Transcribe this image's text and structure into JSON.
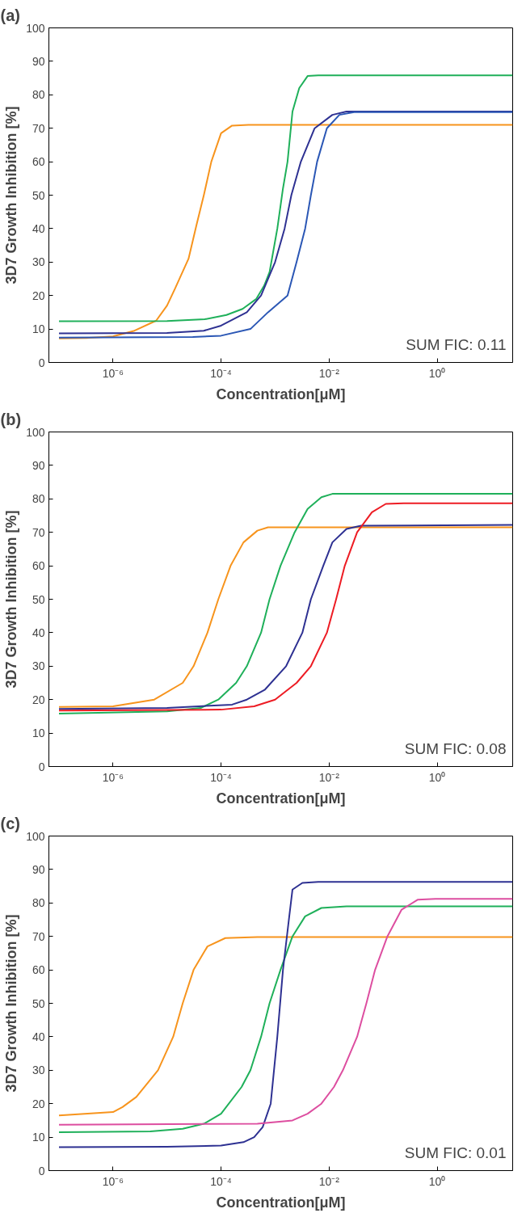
{
  "chart_data": [
    {
      "type": "line",
      "title": "(a)",
      "xlabel": "Concentration[μM]",
      "ylabel": "3D7 Growth Inhibition [%]",
      "log": "x",
      "xlim": [
        6.5e-08,
        25
      ],
      "ylim": [
        0,
        100
      ],
      "xticks": [
        {
          "value": 1e-06,
          "label": "10⁻⁶"
        },
        {
          "value": 0.0001,
          "label": "10⁻⁴"
        },
        {
          "value": 0.01,
          "label": "10⁻²"
        },
        {
          "value": 1,
          "label": "10⁰"
        }
      ],
      "yticks": [
        0,
        10,
        20,
        30,
        40,
        50,
        60,
        70,
        80,
        90,
        100
      ],
      "grid": false,
      "annotations": [
        "SUM FIC: 0.11"
      ],
      "series": [
        {
          "color": "#f7941d",
          "x": [
            1e-07,
            3.2e-07,
            1e-06,
            2.5e-06,
            6.3e-06,
            1e-05,
            1.4e-05,
            2.5e-05,
            3.5e-05,
            4.8e-05,
            6.6e-05,
            0.0001,
            0.00016,
            0.00032,
            25
          ],
          "values": [
            7.2,
            7.3,
            7.8,
            9.5,
            12.5,
            17,
            22,
            31,
            41,
            50,
            60,
            68.5,
            70.8,
            71,
            71
          ]
        },
        {
          "color": "#1fb05a",
          "x": [
            1e-07,
            1e-05,
            5e-05,
            0.000126,
            0.00025,
            0.00045,
            0.00063,
            0.00079,
            0.0011,
            0.0014,
            0.0017,
            0.0021,
            0.0028,
            0.004,
            0.0063,
            25
          ],
          "values": [
            12.3,
            12.4,
            12.9,
            14.2,
            16,
            19,
            23,
            27,
            40,
            52,
            60,
            75,
            82,
            85.6,
            85.8,
            85.8
          ]
        },
        {
          "color": "#2e3192",
          "x": [
            1e-07,
            1e-05,
            4.8e-05,
            0.0001,
            0.0003,
            0.00055,
            0.001,
            0.0015,
            0.002,
            0.003,
            0.0054,
            0.0115,
            0.021,
            25
          ],
          "values": [
            8.7,
            8.8,
            9.5,
            11,
            15,
            20,
            30,
            40,
            50,
            60,
            70,
            74,
            75,
            75
          ]
        },
        {
          "color": "#2b57b5",
          "x": [
            1e-07,
            3e-05,
            0.0001,
            0.00035,
            0.00074,
            0.0017,
            0.0025,
            0.0036,
            0.0046,
            0.006,
            0.0091,
            0.0155,
            0.029,
            25
          ],
          "values": [
            7.4,
            7.6,
            8,
            10,
            15,
            20,
            30,
            40,
            50,
            60,
            70,
            74,
            74.8,
            74.8
          ]
        }
      ]
    },
    {
      "type": "line",
      "title": "(b)",
      "xlabel": "Concentration[μM]",
      "ylabel": "3D7 Growth Inhibition [%]",
      "log": "x",
      "xlim": [
        6.5e-08,
        25
      ],
      "ylim": [
        0,
        100
      ],
      "xticks": [
        {
          "value": 1e-06,
          "label": "10⁻⁶"
        },
        {
          "value": 0.0001,
          "label": "10⁻⁴"
        },
        {
          "value": 0.01,
          "label": "10⁻²"
        },
        {
          "value": 1,
          "label": "10⁰"
        }
      ],
      "yticks": [
        0,
        10,
        20,
        30,
        40,
        50,
        60,
        70,
        80,
        90,
        100
      ],
      "grid": false,
      "annotations": [
        "SUM FIC: 0.08"
      ],
      "series": [
        {
          "color": "#f7941d",
          "x": [
            1e-07,
            1e-06,
            5.8e-06,
            1.95e-05,
            3.1e-05,
            5.6e-05,
            8.9e-05,
            0.00015,
            0.00026,
            0.00047,
            0.00074,
            25
          ],
          "values": [
            17.8,
            18,
            20,
            25,
            30,
            40,
            50,
            60,
            67,
            70.5,
            71.5,
            71.5
          ]
        },
        {
          "color": "#1fb05a",
          "x": [
            1e-07,
            1e-05,
            4.2e-05,
            8.9e-05,
            0.00019,
            0.0003,
            0.00055,
            0.00079,
            0.00126,
            0.0023,
            0.004,
            0.0072,
            0.0115,
            25
          ],
          "values": [
            15.8,
            16.5,
            17.5,
            20,
            25,
            30,
            40,
            50,
            60,
            70,
            77,
            80.5,
            81.5,
            81.5
          ]
        },
        {
          "color": "#2e3192",
          "x": [
            1e-07,
            1e-05,
            0.00016,
            0.0003,
            0.00065,
            0.0016,
            0.0032,
            0.0046,
            0.0078,
            0.0115,
            0.021,
            0.039,
            25
          ],
          "values": [
            17.2,
            17.5,
            18.5,
            20,
            23,
            30,
            40,
            50,
            60,
            67,
            71,
            72,
            72.2
          ]
        },
        {
          "color": "#ed1c24",
          "x": [
            1e-07,
            0.0001,
            0.00041,
            0.001,
            0.0025,
            0.0046,
            0.0091,
            0.0135,
            0.0195,
            0.033,
            0.062,
            0.112,
            0.24,
            25
          ],
          "values": [
            16.7,
            17,
            18,
            20,
            25,
            30,
            40,
            50,
            60,
            70,
            76,
            78.5,
            78.7,
            78.7
          ]
        }
      ]
    },
    {
      "type": "line",
      "title": "(c)",
      "xlabel": "Concentration[μM]",
      "ylabel": "3D7 Growth Inhibition [%]",
      "log": "x",
      "xlim": [
        6.5e-08,
        25
      ],
      "ylim": [
        0,
        100
      ],
      "xticks": [
        {
          "value": 1e-06,
          "label": "10⁻⁶"
        },
        {
          "value": 0.0001,
          "label": "10⁻⁴"
        },
        {
          "value": 0.01,
          "label": "10⁻²"
        },
        {
          "value": 1,
          "label": "10⁰"
        }
      ],
      "yticks": [
        0,
        10,
        20,
        30,
        40,
        50,
        60,
        70,
        80,
        90,
        100
      ],
      "grid": false,
      "annotations": [
        "SUM FIC: 0.01"
      ],
      "series": [
        {
          "color": "#f7941d",
          "x": [
            1e-07,
            1e-06,
            1.5e-06,
            2.7e-06,
            6.8e-06,
            1.3e-05,
            1.95e-05,
            3.1e-05,
            5.6e-05,
            0.00012,
            0.00047,
            25
          ],
          "values": [
            16.5,
            17.5,
            19,
            22,
            30,
            40,
            50,
            60,
            67,
            69.5,
            69.8,
            69.8
          ]
        },
        {
          "color": "#1fb05a",
          "x": [
            1e-07,
            4.9e-06,
            1.95e-05,
            4.8e-05,
            0.0001,
            0.00024,
            0.00035,
            0.00055,
            0.00079,
            0.00126,
            0.0021,
            0.0036,
            0.0072,
            0.021,
            25
          ],
          "values": [
            11.5,
            11.7,
            12.5,
            14,
            17,
            25,
            30,
            40,
            50,
            60,
            70,
            76,
            78.5,
            79,
            79
          ]
        },
        {
          "color": "#2e3192",
          "x": [
            1e-07,
            1e-05,
            0.0001,
            0.00026,
            0.00041,
            0.00059,
            0.00083,
            0.0011,
            0.0014,
            0.0018,
            0.0021,
            0.0032,
            0.0063,
            25
          ],
          "values": [
            7,
            7.1,
            7.5,
            8.5,
            10,
            13,
            20,
            40,
            60,
            75,
            84,
            86,
            86.3,
            86.3
          ]
        },
        {
          "color": "#dd4ea0",
          "x": [
            1e-07,
            0.00047,
            0.0021,
            0.004,
            0.0072,
            0.0123,
            0.018,
            0.033,
            0.049,
            0.071,
            0.12,
            0.22,
            0.44,
            0.93,
            25
          ],
          "values": [
            13.7,
            14,
            15,
            17,
            20,
            25,
            30,
            40,
            50,
            60,
            70,
            78,
            81,
            81.2,
            81.2
          ]
        }
      ]
    }
  ]
}
